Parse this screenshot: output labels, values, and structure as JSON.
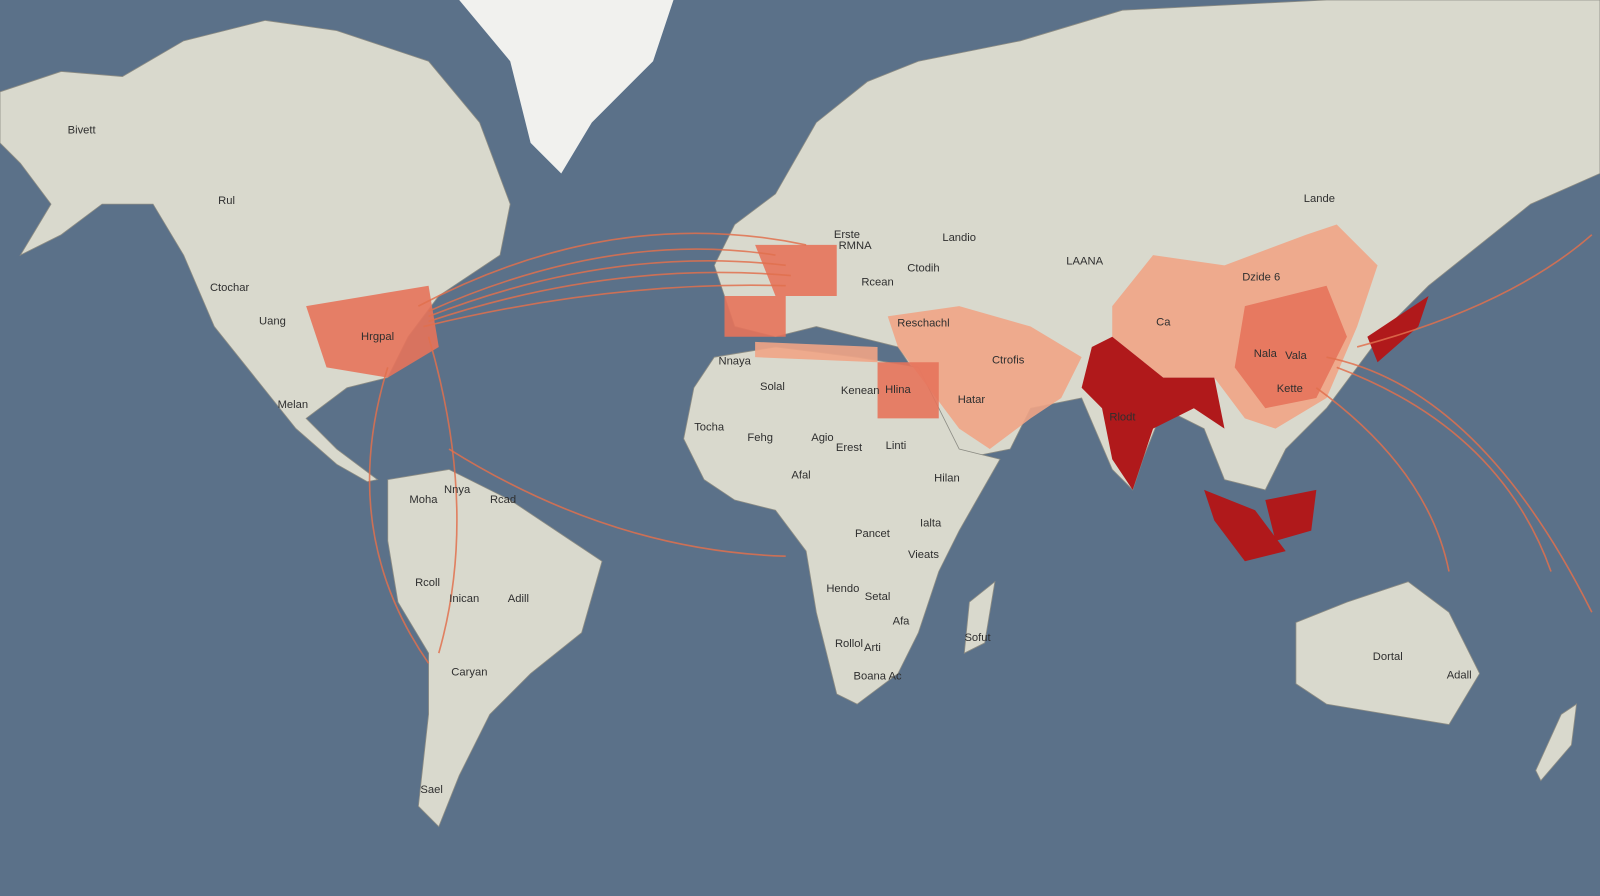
{
  "map": {
    "colors": {
      "ocean": "#5b7189",
      "land": "#d9d9cd",
      "ice": "#f1f1ee",
      "low": "#f0a486",
      "medium": "#e6735b",
      "high": "#b0191b",
      "route": "#e0704e"
    },
    "labels": [
      "Bivett",
      "Rul",
      "Ctochar",
      "Uang",
      "Hrgpal",
      "Melan",
      "Moha",
      "Nnya",
      "Rcad",
      "Rcoll",
      "Inican",
      "Adill",
      "Caryan",
      "Sael",
      "Erste",
      "RMNA",
      "Landio",
      "Rcean",
      "Ctodih",
      "Reschachl",
      "Nnaya",
      "Solal",
      "Kenean",
      "Hlina",
      "Hatar",
      "Ctrofis",
      "Tocha",
      "Fehg",
      "Agio",
      "Erest",
      "Linti",
      "Afal",
      "Hilan",
      "Pancet",
      "Ialta",
      "Vieats",
      "Hendo",
      "Setal",
      "Afa",
      "Rollol",
      "Arti",
      "Boana Ac",
      "Sofut",
      "LAANA",
      "Lande",
      "Dzide 6",
      "Ca",
      "Nala",
      "Vala",
      "Kette",
      "Rlodt",
      "Dortal",
      "Adall"
    ]
  }
}
